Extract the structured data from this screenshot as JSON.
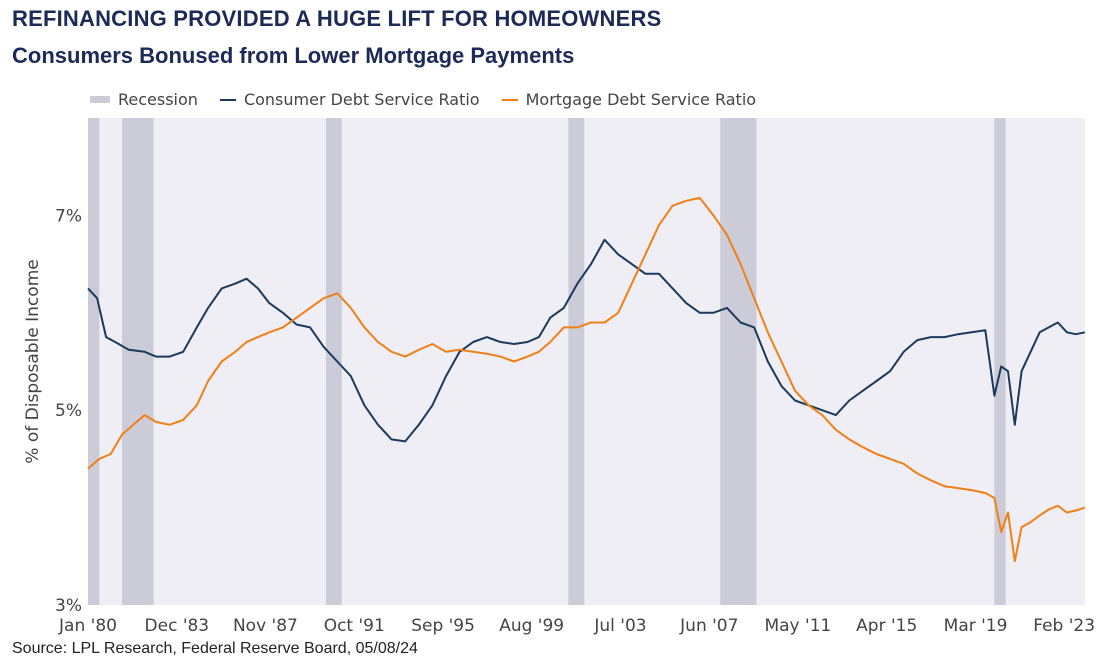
{
  "title": "REFINANCING PROVIDED A HUGE LIFT FOR HOMEOWNERS",
  "subtitle": "Consumers Bonused from Lower Mortgage Payments",
  "source": "Source: LPL Research, Federal Reserve Board, 05/08/24",
  "legend": {
    "recession": "Recession",
    "consumer": "Consumer Debt Service Ratio",
    "mortgage": "Mortgage Debt Service Ratio"
  },
  "colors": {
    "consumer": "#1b3a5c",
    "mortgage": "#f07f18",
    "recession": "#cbccd8",
    "plot_bg": "#eeeef4"
  },
  "chart_data": {
    "type": "line",
    "title": "REFINANCING PROVIDED A HUGE LIFT FOR HOMEOWNERS",
    "subtitle": "Consumers Bonused from Lower Mortgage Payments",
    "xlabel": "",
    "ylabel": "% of Disposable Income",
    "xlim": [
      1980.0,
      2024.0
    ],
    "ylim": [
      3,
      8
    ],
    "yticks": [
      3,
      5,
      7
    ],
    "ytick_labels": [
      "3%",
      "5%",
      "7%"
    ],
    "xticks": [
      1980.0,
      1983.92,
      1987.83,
      1991.75,
      1995.67,
      1999.58,
      2003.5,
      2007.42,
      2011.33,
      2015.25,
      2019.17,
      2023.08
    ],
    "xtick_labels": [
      "Jan '80",
      "Dec '83",
      "Nov '87",
      "Oct '91",
      "Sep '95",
      "Aug '99",
      "Jul '03",
      "Jun '07",
      "May '11",
      "Apr '15",
      "Mar '19",
      "Feb '23"
    ],
    "grid": false,
    "legend_position": "top",
    "recessions": [
      [
        1980.0,
        1980.5
      ],
      [
        1981.5,
        1982.9
      ],
      [
        1990.5,
        1991.2
      ],
      [
        2001.2,
        2001.9
      ],
      [
        2007.9,
        2009.5
      ],
      [
        2020.0,
        2020.5
      ]
    ],
    "series": [
      {
        "name": "Consumer Debt Service Ratio",
        "x": [
          1980.0,
          1980.4,
          1980.8,
          1981.2,
          1981.8,
          1982.5,
          1983.0,
          1983.6,
          1984.2,
          1984.8,
          1985.3,
          1985.9,
          1986.5,
          1987.0,
          1987.5,
          1988.0,
          1988.6,
          1989.2,
          1989.8,
          1990.4,
          1991.0,
          1991.6,
          1992.2,
          1992.8,
          1993.4,
          1994.0,
          1994.6,
          1995.2,
          1995.8,
          1996.4,
          1997.0,
          1997.6,
          1998.2,
          1998.8,
          1999.4,
          1999.9,
          2000.4,
          2001.0,
          2001.6,
          2002.2,
          2002.8,
          2003.4,
          2004.0,
          2004.6,
          2005.2,
          2005.8,
          2006.4,
          2007.0,
          2007.6,
          2008.2,
          2008.8,
          2009.4,
          2010.0,
          2010.6,
          2011.2,
          2011.8,
          2012.4,
          2013.0,
          2013.6,
          2014.2,
          2014.8,
          2015.4,
          2016.0,
          2016.6,
          2017.2,
          2017.8,
          2018.4,
          2019.0,
          2019.6,
          2020.0,
          2020.3,
          2020.6,
          2020.9,
          2021.2,
          2021.6,
          2022.0,
          2022.4,
          2022.8,
          2023.2,
          2023.6,
          2024.0
        ],
        "y": [
          6.25,
          6.15,
          5.75,
          5.7,
          5.62,
          5.6,
          5.55,
          5.55,
          5.6,
          5.85,
          6.05,
          6.25,
          6.3,
          6.35,
          6.25,
          6.1,
          6.0,
          5.88,
          5.85,
          5.65,
          5.5,
          5.35,
          5.05,
          4.85,
          4.7,
          4.68,
          4.85,
          5.05,
          5.35,
          5.6,
          5.7,
          5.75,
          5.7,
          5.68,
          5.7,
          5.75,
          5.95,
          6.05,
          6.3,
          6.5,
          6.75,
          6.6,
          6.5,
          6.4,
          6.4,
          6.25,
          6.1,
          6.0,
          6.0,
          6.05,
          5.9,
          5.85,
          5.5,
          5.25,
          5.1,
          5.05,
          5.0,
          4.95,
          5.1,
          5.2,
          5.3,
          5.4,
          5.6,
          5.72,
          5.75,
          5.75,
          5.78,
          5.8,
          5.82,
          5.15,
          5.45,
          5.4,
          4.85,
          5.4,
          5.6,
          5.8,
          5.85,
          5.9,
          5.8,
          5.78,
          5.8
        ]
      },
      {
        "name": "Mortgage Debt Service Ratio",
        "x": [
          1980.0,
          1980.5,
          1981.0,
          1981.5,
          1982.0,
          1982.5,
          1983.0,
          1983.6,
          1984.2,
          1984.8,
          1985.3,
          1985.9,
          1986.5,
          1987.0,
          1987.5,
          1988.0,
          1988.6,
          1989.2,
          1989.8,
          1990.4,
          1991.0,
          1991.6,
          1992.2,
          1992.8,
          1993.4,
          1994.0,
          1994.6,
          1995.2,
          1995.8,
          1996.4,
          1997.0,
          1997.6,
          1998.2,
          1998.8,
          1999.4,
          1999.9,
          2000.4,
          2001.0,
          2001.6,
          2002.2,
          2002.8,
          2003.4,
          2004.0,
          2004.6,
          2005.2,
          2005.8,
          2006.4,
          2007.0,
          2007.6,
          2008.2,
          2008.8,
          2009.4,
          2010.0,
          2010.6,
          2011.2,
          2011.8,
          2012.4,
          2013.0,
          2013.6,
          2014.2,
          2014.8,
          2015.4,
          2016.0,
          2016.6,
          2017.2,
          2017.8,
          2018.4,
          2019.0,
          2019.6,
          2020.0,
          2020.3,
          2020.6,
          2020.9,
          2021.2,
          2021.6,
          2022.0,
          2022.4,
          2022.8,
          2023.2,
          2023.6,
          2024.0
        ],
        "y": [
          4.4,
          4.5,
          4.55,
          4.75,
          4.85,
          4.95,
          4.88,
          4.85,
          4.9,
          5.05,
          5.3,
          5.5,
          5.6,
          5.7,
          5.75,
          5.8,
          5.85,
          5.95,
          6.05,
          6.15,
          6.2,
          6.05,
          5.85,
          5.7,
          5.6,
          5.55,
          5.62,
          5.68,
          5.6,
          5.62,
          5.6,
          5.58,
          5.55,
          5.5,
          5.55,
          5.6,
          5.7,
          5.85,
          5.85,
          5.9,
          5.9,
          6.0,
          6.3,
          6.6,
          6.9,
          7.1,
          7.15,
          7.18,
          7.0,
          6.8,
          6.5,
          6.15,
          5.8,
          5.5,
          5.2,
          5.05,
          4.95,
          4.8,
          4.7,
          4.62,
          4.55,
          4.5,
          4.45,
          4.35,
          4.28,
          4.22,
          4.2,
          4.18,
          4.15,
          4.1,
          3.75,
          3.95,
          3.45,
          3.8,
          3.85,
          3.92,
          3.98,
          4.02,
          3.95,
          3.97,
          4.0
        ]
      }
    ]
  }
}
